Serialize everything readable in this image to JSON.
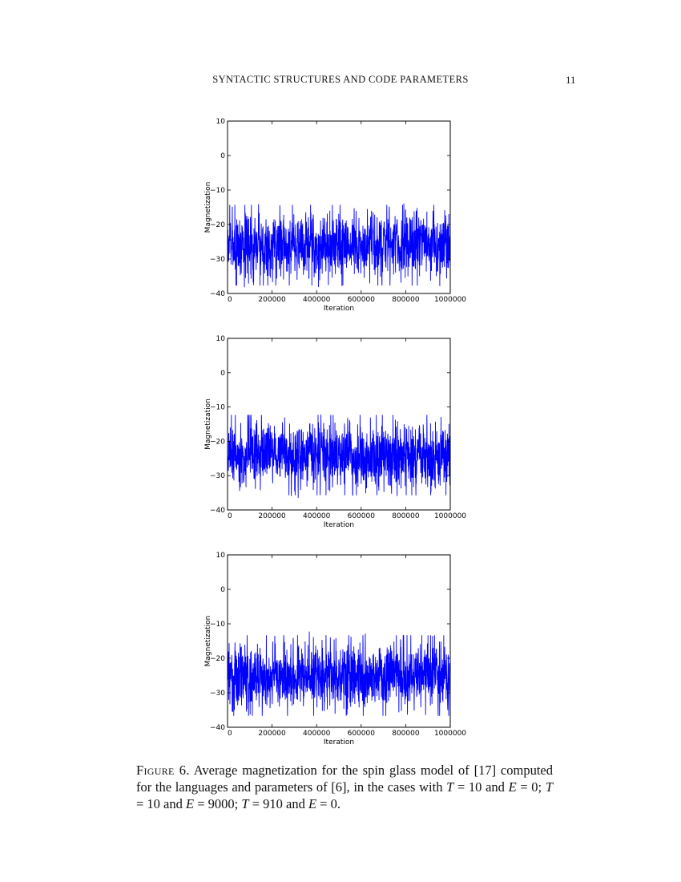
{
  "header": {
    "running_title": "SYNTACTIC STRUCTURES AND CODE PARAMETERS",
    "page_number": "11"
  },
  "chart_data": [
    {
      "type": "line",
      "xlabel": "Iteration",
      "ylabel": "Magnetization",
      "xlim": [
        0,
        1000000
      ],
      "ylim": [
        -40,
        10
      ],
      "xticks": [
        "0",
        "200000",
        "400000",
        "600000",
        "800000",
        "1000000"
      ],
      "yticks": [
        "10",
        "0",
        "−10",
        "−20",
        "−30",
        "−40"
      ],
      "series": [
        {
          "color": "#0000ff",
          "mean": -26,
          "spread": 4.5,
          "min": -40,
          "max": -11,
          "seed": 7
        }
      ]
    },
    {
      "type": "line",
      "xlabel": "Iteration",
      "ylabel": "Magnetization",
      "xlim": [
        0,
        1000000
      ],
      "ylim": [
        -40,
        10
      ],
      "xticks": [
        "0",
        "200000",
        "400000",
        "600000",
        "800000",
        "1000000"
      ],
      "yticks": [
        "10",
        "0",
        "−10",
        "−20",
        "−30",
        "−40"
      ],
      "series": [
        {
          "color": "#0000ff",
          "mean": -24,
          "spread": 4.5,
          "min": -38,
          "max": -10,
          "seed": 19
        }
      ]
    },
    {
      "type": "line",
      "xlabel": "Iteration",
      "ylabel": "Magnetization",
      "xlim": [
        0,
        1000000
      ],
      "ylim": [
        -40,
        10
      ],
      "xticks": [
        "0",
        "200000",
        "400000",
        "600000",
        "800000",
        "1000000"
      ],
      "yticks": [
        "10",
        "0",
        "−10",
        "−20",
        "−30",
        "−40"
      ],
      "series": [
        {
          "color": "#0000ff",
          "mean": -25,
          "spread": 4.5,
          "min": -39,
          "max": -10,
          "seed": 31
        }
      ]
    }
  ],
  "caption": {
    "lead": "Figure 6.",
    "text_1": " Average magnetization for the spin glass model of [17] computed for the languages and parameters of [6], in the cases with ",
    "T": "T",
    "eq_10_a": " = 10 and ",
    "E": "E",
    "eq_0_a": " = 0; ",
    "eq_10_b": " = 10 and ",
    "eq_9000": " = 9000; ",
    "eq_910": " = 910 and ",
    "eq_0_b": " = 0."
  }
}
